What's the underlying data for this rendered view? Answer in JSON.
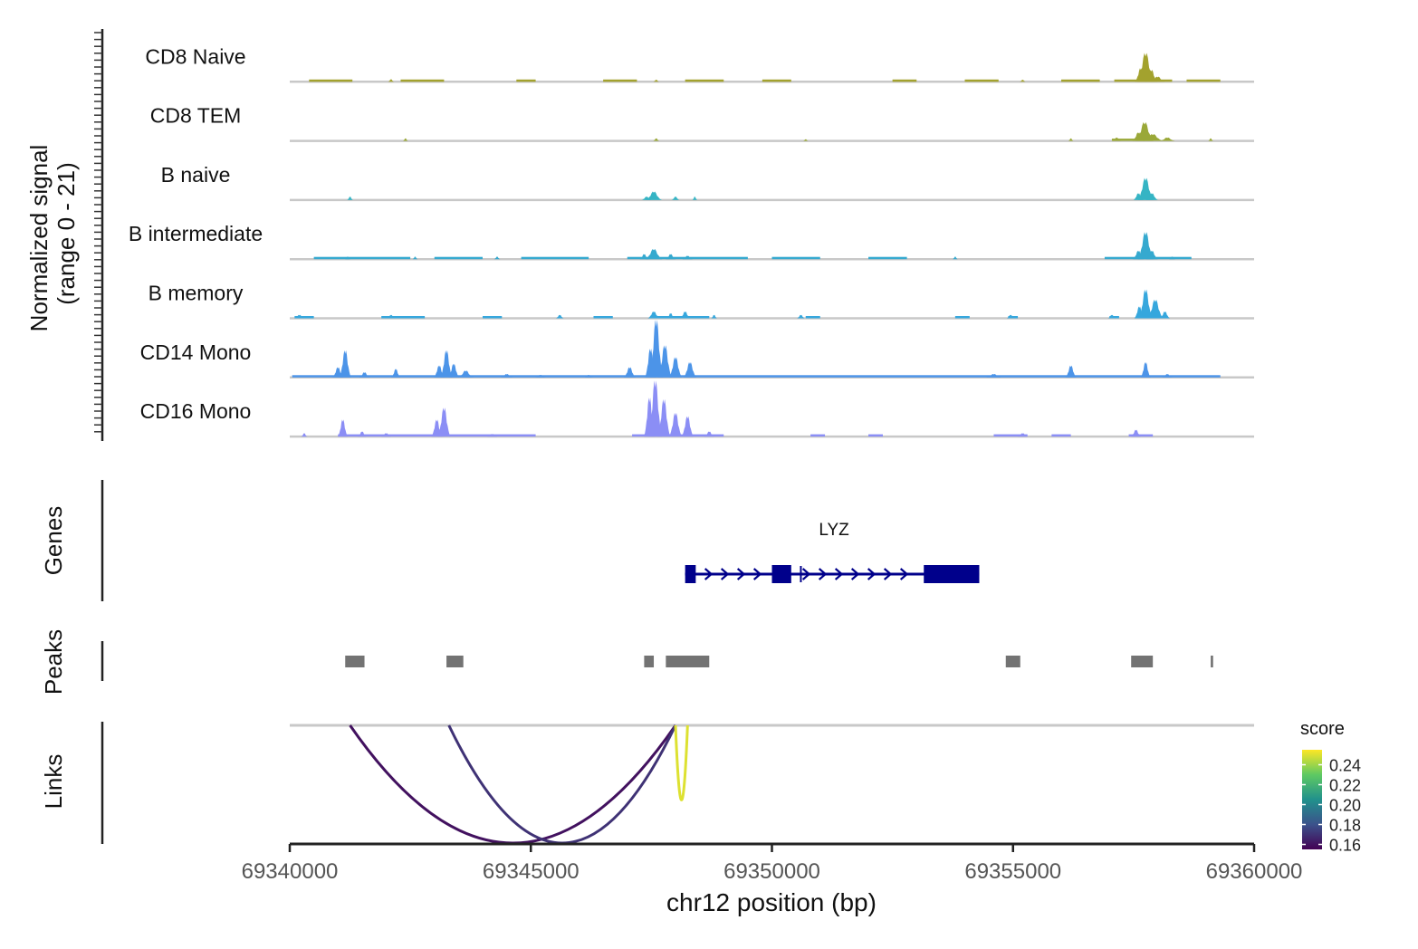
{
  "chart_data": {
    "type": "area",
    "xlabel": "chr12 position (bp)",
    "xlim": [
      69340000,
      69360000
    ],
    "x_ticks": [
      69340000,
      69345000,
      69350000,
      69355000,
      69360000
    ],
    "coverage": {
      "ylabel_line1": "Normalized signal",
      "ylabel_line2": "(range 0 - 21)",
      "ylim": [
        0,
        21
      ],
      "tracks": [
        {
          "name": "CD8 Naive",
          "color": "#a3a22e",
          "baseline": [
            [
              69340400,
              69341300
            ],
            [
              69342300,
              69343200
            ],
            [
              69344700,
              69345100
            ],
            [
              69346500,
              69347200
            ],
            [
              69348200,
              69349000
            ],
            [
              69349800,
              69350400
            ],
            [
              69352500,
              69353000
            ],
            [
              69354000,
              69354700
            ],
            [
              69356000,
              69356800
            ],
            [
              69357100,
              69358300
            ],
            [
              69358600,
              69359300
            ]
          ],
          "peaks": [
            [
              69357750,
              17,
              170
            ],
            [
              69357650,
              8,
              120
            ],
            [
              69357870,
              7,
              120
            ],
            [
              69358000,
              3,
              150
            ],
            [
              69342100,
              1.5,
              60
            ],
            [
              69347600,
              1.2,
              60
            ],
            [
              69355200,
              1.2,
              60
            ]
          ]
        },
        {
          "name": "CD8 TEM",
          "color": "#9aa838",
          "baseline": [
            [
              69357050,
              69357900
            ]
          ],
          "peaks": [
            [
              69357730,
              11,
              180
            ],
            [
              69357600,
              5,
              120
            ],
            [
              69357900,
              4,
              200
            ],
            [
              69358200,
              2,
              150
            ],
            [
              69357150,
              2,
              80
            ],
            [
              69342400,
              1.5,
              50
            ],
            [
              69347600,
              1.5,
              60
            ],
            [
              69350700,
              1,
              50
            ],
            [
              69356200,
              1.5,
              50
            ],
            [
              69359100,
              1.5,
              50
            ]
          ]
        },
        {
          "name": "B naive",
          "color": "#35b4c4",
          "baseline": [],
          "peaks": [
            [
              69357750,
              13,
              160
            ],
            [
              69357600,
              4,
              100
            ],
            [
              69357880,
              4,
              120
            ],
            [
              69347550,
              5,
              160
            ],
            [
              69347400,
              2,
              100
            ],
            [
              69348000,
              2,
              80
            ],
            [
              69341250,
              2,
              60
            ],
            [
              69348400,
              2,
              50
            ]
          ]
        },
        {
          "name": "B intermediate",
          "color": "#35a9cf",
          "baseline": [
            [
              69340500,
              69342500
            ],
            [
              69343000,
              69344000
            ],
            [
              69344800,
              69346200
            ],
            [
              69347000,
              69349500
            ],
            [
              69350000,
              69351000
            ],
            [
              69352000,
              69352800
            ],
            [
              69356900,
              69358700
            ]
          ],
          "peaks": [
            [
              69357750,
              16,
              160
            ],
            [
              69357600,
              5,
              110
            ],
            [
              69357880,
              5,
              120
            ],
            [
              69347550,
              6,
              170
            ],
            [
              69347350,
              3,
              90
            ],
            [
              69347900,
              3,
              100
            ],
            [
              69348250,
              2,
              100
            ],
            [
              69341200,
              1.5,
              50
            ],
            [
              69342600,
              1.5,
              50
            ],
            [
              69344300,
              1.5,
              60
            ],
            [
              69353800,
              1.5,
              50
            ],
            [
              69358300,
              1.5,
              60
            ]
          ]
        },
        {
          "name": "B memory",
          "color": "#36a7dd",
          "baseline": [
            [
              69340100,
              69340500
            ],
            [
              69341900,
              69342800
            ],
            [
              69344000,
              69344400
            ],
            [
              69346300,
              69346700
            ],
            [
              69347500,
              69348700
            ],
            [
              69350700,
              69351000
            ],
            [
              69353800,
              69354100
            ],
            [
              69354900,
              69355100
            ],
            [
              69357000,
              69357200
            ]
          ],
          "peaks": [
            [
              69357750,
              17,
              140
            ],
            [
              69357950,
              11,
              160
            ],
            [
              69357620,
              7,
              100
            ],
            [
              69358150,
              4,
              100
            ],
            [
              69347550,
              4,
              120
            ],
            [
              69348200,
              4,
              100
            ],
            [
              69347900,
              3,
              80
            ],
            [
              69340200,
              2,
              100
            ],
            [
              69342100,
              2,
              80
            ],
            [
              69345600,
              2,
              80
            ],
            [
              69348800,
              2,
              60
            ],
            [
              69350600,
              2,
              80
            ],
            [
              69354950,
              2,
              80
            ],
            [
              69357050,
              2,
              80
            ]
          ]
        },
        {
          "name": "CD14 Mono",
          "color": "#4c94e8",
          "baseline": [
            [
              69340050,
              69359300
            ]
          ],
          "peaks": [
            [
              69347600,
              34,
              140
            ],
            [
              69347480,
              17,
              110
            ],
            [
              69347780,
              19,
              140
            ],
            [
              69348000,
              12,
              130
            ],
            [
              69348300,
              9,
              130
            ],
            [
              69347050,
              6,
              120
            ],
            [
              69341150,
              16,
              120
            ],
            [
              69341000,
              6,
              110
            ],
            [
              69343250,
              16,
              120
            ],
            [
              69343100,
              7,
              110
            ],
            [
              69343400,
              8,
              110
            ],
            [
              69343650,
              4,
              150
            ],
            [
              69342200,
              5,
              90
            ],
            [
              69341550,
              3,
              110
            ],
            [
              69356200,
              7,
              110
            ],
            [
              69357750,
              9,
              100
            ],
            [
              69344500,
              2,
              120
            ],
            [
              69345200,
              1.5,
              100
            ],
            [
              69354600,
              2,
              150
            ],
            [
              69358200,
              2,
              100
            ],
            [
              69346200,
              1.5,
              80
            ]
          ]
        },
        {
          "name": "CD16 Mono",
          "color": "#8b8ef5",
          "baseline": [
            [
              69341000,
              69343200
            ],
            [
              69343300,
              69345100
            ],
            [
              69347100,
              69349000
            ],
            [
              69350800,
              69351100
            ],
            [
              69352000,
              69352300
            ],
            [
              69354600,
              69355300
            ],
            [
              69355800,
              69356200
            ],
            [
              69357400,
              69357900
            ]
          ],
          "peaks": [
            [
              69347580,
              33,
              140
            ],
            [
              69347460,
              23,
              110
            ],
            [
              69347760,
              22,
              130
            ],
            [
              69348000,
              14,
              130
            ],
            [
              69348250,
              12,
              120
            ],
            [
              69343200,
              17,
              130
            ],
            [
              69343050,
              10,
              110
            ],
            [
              69341100,
              10,
              100
            ],
            [
              69341500,
              3,
              90
            ],
            [
              69357550,
              4,
              100
            ],
            [
              69355200,
              2,
              100
            ],
            [
              69348700,
              3,
              100
            ],
            [
              69340300,
              2,
              60
            ],
            [
              69342000,
              2,
              100
            ],
            [
              69344200,
              1.5,
              100
            ]
          ]
        }
      ]
    },
    "genes": {
      "label": "Genes",
      "items": [
        {
          "name": "LYZ",
          "start": 69348200,
          "end": 69354300,
          "strand": "+",
          "color": "#00008b",
          "exons": [
            [
              69348200,
              69348420
            ],
            [
              69350000,
              69350400
            ],
            [
              69353150,
              69354300
            ]
          ]
        }
      ]
    },
    "peaks": {
      "label": "Peaks",
      "color": "#737373",
      "regions": [
        [
          69341150,
          69341550
        ],
        [
          69343250,
          69343600
        ],
        [
          69347350,
          69347550
        ],
        [
          69347800,
          69348700
        ],
        [
          69354850,
          69355150
        ],
        [
          69357450,
          69357900
        ],
        [
          69359100,
          69359150
        ]
      ]
    },
    "links": {
      "label": "Links",
      "color_scale_title": "score",
      "color_scale_ticks": [
        0.16,
        0.18,
        0.2,
        0.22,
        0.24
      ],
      "color_scale_range": [
        0.155,
        0.255
      ],
      "items": [
        {
          "start": 69341250,
          "end": 69348000,
          "score": 0.16
        },
        {
          "start": 69343300,
          "end": 69348000,
          "score": 0.17
        },
        {
          "start": 69348000,
          "end": 69348250,
          "score": 0.25
        }
      ]
    }
  }
}
